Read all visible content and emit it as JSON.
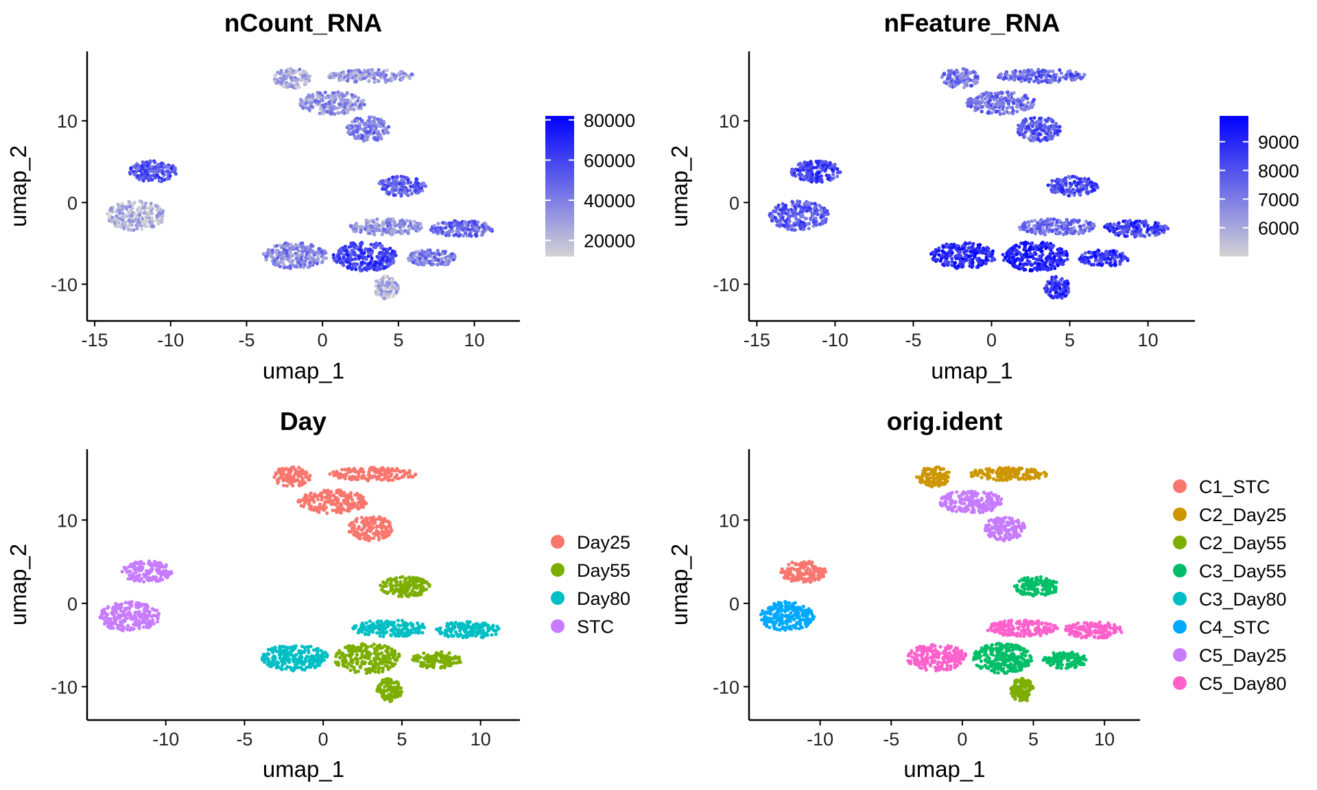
{
  "chart_data": [
    {
      "type": "scatter",
      "title": "nCount_RNA",
      "xlabel": "umap_1",
      "ylabel": "umap_2",
      "xlim": [
        -15.5,
        13
      ],
      "ylim": [
        -14.5,
        18.5
      ],
      "xticks": [
        -15,
        -10,
        -5,
        0,
        5,
        10
      ],
      "yticks": [
        -10,
        0,
        10
      ],
      "color_scale": {
        "type": "continuous",
        "low": "#d3d3d3",
        "high": "#0000ff",
        "min": 12000,
        "max": 82000,
        "ticks": [
          20000,
          40000,
          60000,
          80000
        ]
      },
      "clusters": [
        {
          "cx": -11.2,
          "cy": 3.8,
          "rx": 1.6,
          "ry": 1.3,
          "value": 55000
        },
        {
          "cx": -12.3,
          "cy": -1.6,
          "rx": 1.9,
          "ry": 1.8,
          "value": 22000
        },
        {
          "cx": -2.0,
          "cy": 15.2,
          "rx": 1.2,
          "ry": 1.2,
          "value": 28000
        },
        {
          "cx": 3.2,
          "cy": 15.5,
          "rx": 2.8,
          "ry": 0.8,
          "value": 32000
        },
        {
          "cx": 0.6,
          "cy": 12.2,
          "rx": 2.2,
          "ry": 1.4,
          "value": 33000
        },
        {
          "cx": 3.0,
          "cy": 9.0,
          "rx": 1.4,
          "ry": 1.5,
          "value": 42000
        },
        {
          "cx": -1.8,
          "cy": -6.5,
          "rx": 2.1,
          "ry": 1.6,
          "value": 38000
        },
        {
          "cx": 2.8,
          "cy": -6.6,
          "rx": 2.1,
          "ry": 1.8,
          "value": 60000
        },
        {
          "cx": 4.2,
          "cy": -10.4,
          "rx": 0.8,
          "ry": 1.4,
          "value": 22000
        },
        {
          "cx": 5.2,
          "cy": 2.0,
          "rx": 1.6,
          "ry": 1.2,
          "value": 52000
        },
        {
          "cx": 9.2,
          "cy": -3.2,
          "rx": 2.1,
          "ry": 1.0,
          "value": 48000
        },
        {
          "cx": 7.2,
          "cy": -6.8,
          "rx": 1.6,
          "ry": 1.0,
          "value": 42000
        },
        {
          "cx": 4.2,
          "cy": -3.0,
          "rx": 2.5,
          "ry": 1.0,
          "value": 35000
        }
      ]
    },
    {
      "type": "scatter",
      "title": "nFeature_RNA",
      "xlabel": "umap_1",
      "ylabel": "umap_2",
      "xlim": [
        -15.5,
        13
      ],
      "ylim": [
        -14.5,
        18.5
      ],
      "xticks": [
        -15,
        -10,
        -5,
        0,
        5,
        10
      ],
      "yticks": [
        -10,
        0,
        10
      ],
      "color_scale": {
        "type": "continuous",
        "low": "#d3d3d3",
        "high": "#0000ff",
        "min": 5000,
        "max": 9900,
        "ticks": [
          6000,
          7000,
          8000,
          9000
        ]
      },
      "clusters": [
        {
          "cx": -11.2,
          "cy": 3.8,
          "rx": 1.6,
          "ry": 1.3,
          "value": 8400
        },
        {
          "cx": -12.3,
          "cy": -1.6,
          "rx": 1.9,
          "ry": 1.8,
          "value": 7800
        },
        {
          "cx": -2.0,
          "cy": 15.2,
          "rx": 1.2,
          "ry": 1.2,
          "value": 7200
        },
        {
          "cx": 3.2,
          "cy": 15.5,
          "rx": 2.8,
          "ry": 0.8,
          "value": 7600
        },
        {
          "cx": 0.6,
          "cy": 12.2,
          "rx": 2.2,
          "ry": 1.4,
          "value": 7300
        },
        {
          "cx": 3.0,
          "cy": 9.0,
          "rx": 1.4,
          "ry": 1.5,
          "value": 7800
        },
        {
          "cx": -1.8,
          "cy": -6.5,
          "rx": 2.1,
          "ry": 1.6,
          "value": 9100
        },
        {
          "cx": 2.8,
          "cy": -6.6,
          "rx": 2.1,
          "ry": 1.8,
          "value": 9200
        },
        {
          "cx": 4.2,
          "cy": -10.4,
          "rx": 0.8,
          "ry": 1.4,
          "value": 8600
        },
        {
          "cx": 5.2,
          "cy": 2.0,
          "rx": 1.6,
          "ry": 1.2,
          "value": 8200
        },
        {
          "cx": 9.2,
          "cy": -3.2,
          "rx": 2.1,
          "ry": 1.0,
          "value": 8500
        },
        {
          "cx": 7.2,
          "cy": -6.8,
          "rx": 1.6,
          "ry": 1.0,
          "value": 8700
        },
        {
          "cx": 4.2,
          "cy": -3.0,
          "rx": 2.5,
          "ry": 1.0,
          "value": 7400
        }
      ]
    },
    {
      "type": "scatter",
      "title": "Day",
      "xlabel": "umap_1",
      "ylabel": "umap_2",
      "xlim": [
        -15,
        12.5
      ],
      "ylim": [
        -14,
        18.5
      ],
      "xticks": [
        -10,
        -5,
        0,
        5,
        10
      ],
      "yticks": [
        -10,
        0,
        10
      ],
      "legend": {
        "position": "right",
        "entries": [
          {
            "name": "Day25",
            "color": "#f8766d"
          },
          {
            "name": "Day55",
            "color": "#7cae00"
          },
          {
            "name": "Day80",
            "color": "#00bfc4"
          },
          {
            "name": "STC",
            "color": "#c77cff"
          }
        ]
      },
      "clusters": [
        {
          "cx": -11.2,
          "cy": 3.8,
          "rx": 1.6,
          "ry": 1.3,
          "group": "STC"
        },
        {
          "cx": -12.3,
          "cy": -1.6,
          "rx": 1.9,
          "ry": 1.8,
          "group": "STC"
        },
        {
          "cx": -2.0,
          "cy": 15.2,
          "rx": 1.2,
          "ry": 1.2,
          "group": "Day25"
        },
        {
          "cx": 3.2,
          "cy": 15.5,
          "rx": 2.8,
          "ry": 0.8,
          "group": "Day25"
        },
        {
          "cx": 0.6,
          "cy": 12.2,
          "rx": 2.2,
          "ry": 1.4,
          "group": "Day25"
        },
        {
          "cx": 3.0,
          "cy": 9.0,
          "rx": 1.4,
          "ry": 1.5,
          "group": "Day25"
        },
        {
          "cx": -1.8,
          "cy": -6.5,
          "rx": 2.1,
          "ry": 1.6,
          "group": "Day80"
        },
        {
          "cx": 2.8,
          "cy": -6.6,
          "rx": 2.1,
          "ry": 1.8,
          "group": "Day55"
        },
        {
          "cx": 4.2,
          "cy": -10.4,
          "rx": 0.8,
          "ry": 1.4,
          "group": "Day55"
        },
        {
          "cx": 5.2,
          "cy": 2.0,
          "rx": 1.6,
          "ry": 1.2,
          "group": "Day55"
        },
        {
          "cx": 9.2,
          "cy": -3.2,
          "rx": 2.1,
          "ry": 1.0,
          "group": "Day80"
        },
        {
          "cx": 7.2,
          "cy": -6.8,
          "rx": 1.6,
          "ry": 1.0,
          "group": "Day55"
        },
        {
          "cx": 4.2,
          "cy": -3.0,
          "rx": 2.5,
          "ry": 1.0,
          "group": "Day80"
        }
      ]
    },
    {
      "type": "scatter",
      "title": "orig.ident",
      "xlabel": "umap_1",
      "ylabel": "umap_2",
      "xlim": [
        -15,
        12.5
      ],
      "ylim": [
        -14,
        18.5
      ],
      "xticks": [
        -10,
        -5,
        0,
        5,
        10
      ],
      "yticks": [
        -10,
        0,
        10
      ],
      "legend": {
        "position": "right",
        "entries": [
          {
            "name": "C1_STC",
            "color": "#f8766d"
          },
          {
            "name": "C2_Day25",
            "color": "#cd9600"
          },
          {
            "name": "C2_Day55",
            "color": "#7cae00"
          },
          {
            "name": "C3_Day55",
            "color": "#00be67"
          },
          {
            "name": "C3_Day80",
            "color": "#00bfc4"
          },
          {
            "name": "C4_STC",
            "color": "#00a9ff"
          },
          {
            "name": "C5_Day25",
            "color": "#c77cff"
          },
          {
            "name": "C5_Day80",
            "color": "#ff61cc"
          }
        ]
      },
      "clusters": [
        {
          "cx": -11.2,
          "cy": 3.8,
          "rx": 1.6,
          "ry": 1.3,
          "group": "C1_STC"
        },
        {
          "cx": -12.3,
          "cy": -1.6,
          "rx": 1.9,
          "ry": 1.8,
          "group": "C4_STC"
        },
        {
          "cx": -2.0,
          "cy": 15.2,
          "rx": 1.2,
          "ry": 1.2,
          "group": "C2_Day25"
        },
        {
          "cx": 3.2,
          "cy": 15.5,
          "rx": 2.8,
          "ry": 0.8,
          "group": "C2_Day25"
        },
        {
          "cx": 0.6,
          "cy": 12.2,
          "rx": 2.2,
          "ry": 1.4,
          "group": "C5_Day25"
        },
        {
          "cx": 3.0,
          "cy": 9.0,
          "rx": 1.4,
          "ry": 1.5,
          "group": "C5_Day25"
        },
        {
          "cx": -1.8,
          "cy": -6.5,
          "rx": 2.1,
          "ry": 1.6,
          "group": "C5_Day80"
        },
        {
          "cx": 2.8,
          "cy": -6.6,
          "rx": 2.1,
          "ry": 1.8,
          "group": "C3_Day55"
        },
        {
          "cx": 4.2,
          "cy": -10.4,
          "rx": 0.8,
          "ry": 1.4,
          "group": "C2_Day55"
        },
        {
          "cx": 5.2,
          "cy": 2.0,
          "rx": 1.6,
          "ry": 1.2,
          "group": "C3_Day55"
        },
        {
          "cx": 9.2,
          "cy": -3.2,
          "rx": 2.1,
          "ry": 1.0,
          "group": "C5_Day80"
        },
        {
          "cx": 7.2,
          "cy": -6.8,
          "rx": 1.6,
          "ry": 1.0,
          "group": "C3_Day55"
        },
        {
          "cx": 4.2,
          "cy": -3.0,
          "rx": 2.5,
          "ry": 1.0,
          "group": "C5_Day80"
        }
      ]
    }
  ]
}
